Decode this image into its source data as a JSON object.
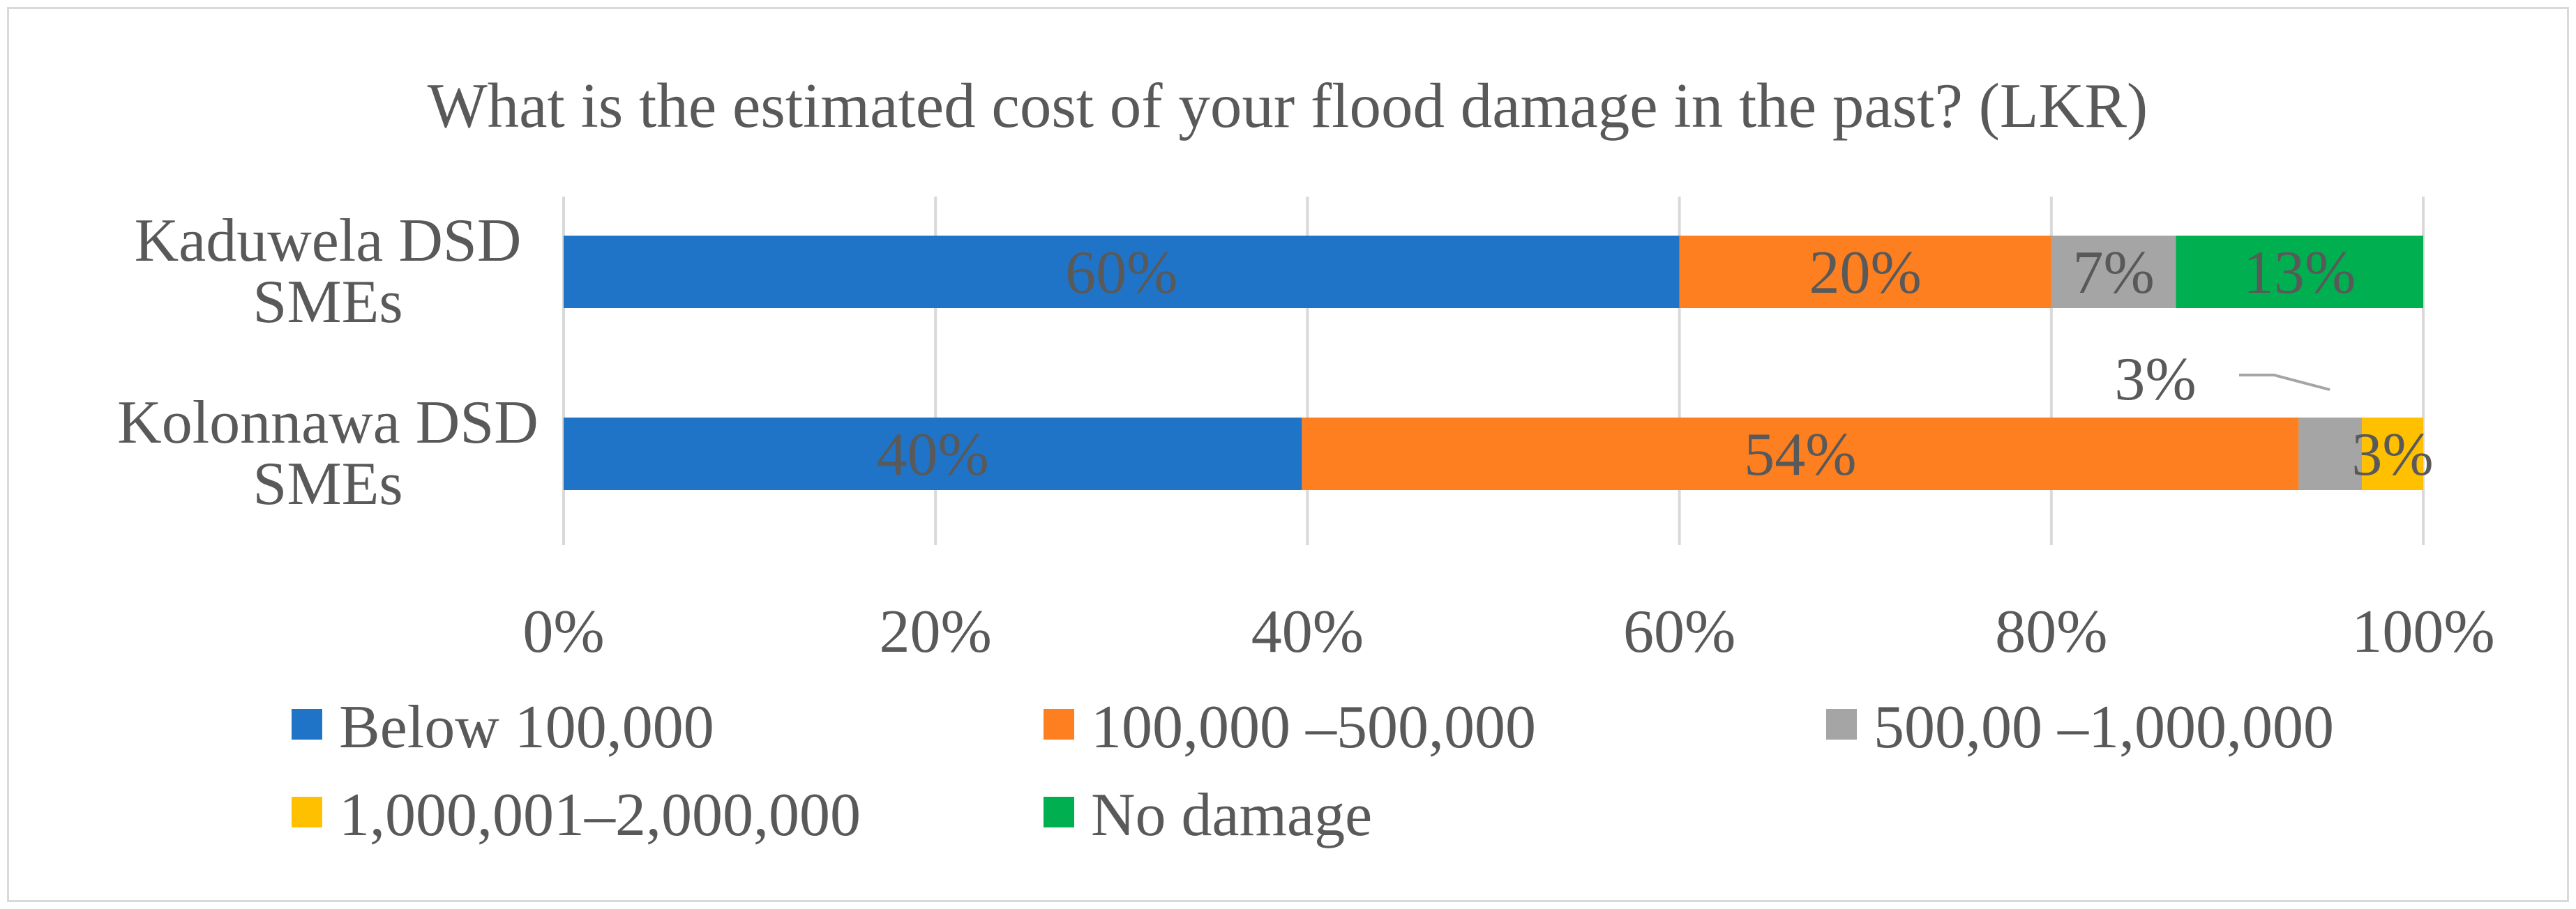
{
  "chart_data": {
    "type": "bar",
    "orientation": "horizontal",
    "stacked": "percent",
    "title": "What is the estimated cost of your flood damage in the past? (LKR)",
    "categories": [
      [
        "Kaduwela DSD",
        "SMEs"
      ],
      [
        "Kolonnawa DSD",
        "SMEs"
      ]
    ],
    "series": [
      {
        "name": "Below 100,000",
        "color": "#1f74c8",
        "values": [
          60,
          39.7
        ],
        "labels": [
          "60%",
          "40%"
        ],
        "label_color": "#5a5a5a"
      },
      {
        "name": "100,000 –5​00,000",
        "color": "#fd7f20",
        "values": [
          20,
          53.6
        ],
        "labels": [
          "20%",
          "54%"
        ],
        "label_color": "#595959"
      },
      {
        "name": "500,00 –1,000,000",
        "color": "#a5a5a5",
        "values": [
          6.7,
          3.4
        ],
        "labels": [
          "7%",
          "3%"
        ],
        "label_color": "#595959"
      },
      {
        "name": "1,000,001–2,000,000",
        "color": "#ffc000",
        "values": [
          0,
          3.3
        ],
        "labels": [
          "",
          "3%"
        ],
        "label_color": "#595959"
      },
      {
        "name": "No damage",
        "color": "#00b050",
        "values": [
          13.3,
          0
        ],
        "labels": [
          "13%",
          ""
        ],
        "label_color": "#595959"
      }
    ],
    "xlim": [
      0,
      100
    ],
    "x_ticks": [
      "0%",
      "20%",
      "40%",
      "60%",
      "80%",
      "100%"
    ],
    "grid": "vertical",
    "legend_position": "bottom"
  }
}
